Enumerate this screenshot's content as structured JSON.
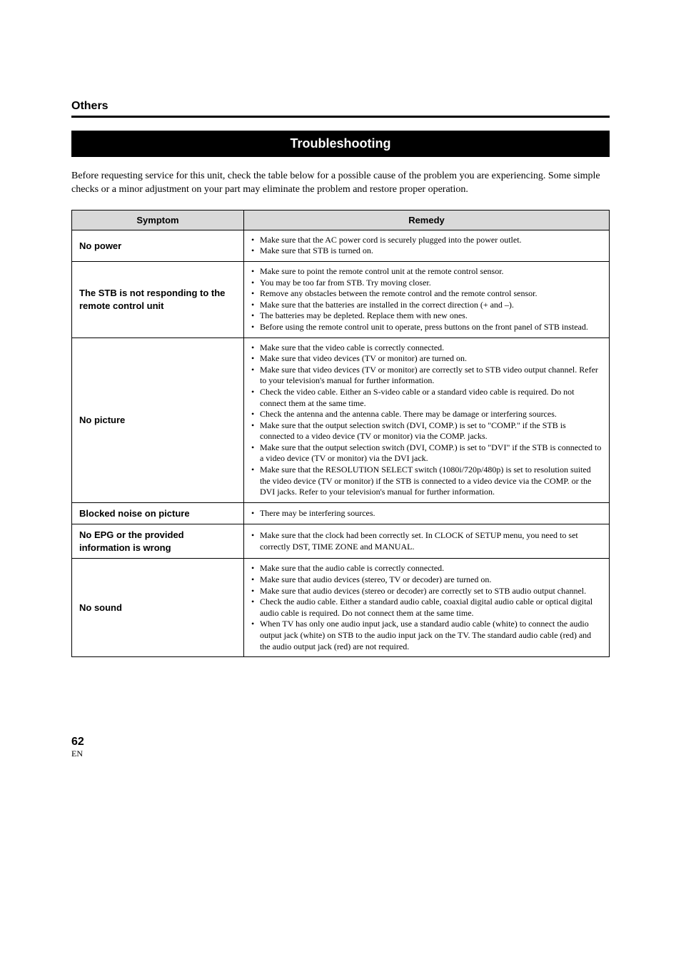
{
  "header": {
    "section_label": "Others",
    "title": "Troubleshooting",
    "intro": "Before requesting service for this unit, check the table below for a possible cause of the problem you are experiencing. Some simple checks or a minor adjustment on your part may eliminate the problem and restore proper operation."
  },
  "table": {
    "col_symptom": "Symptom",
    "col_remedy": "Remedy",
    "rows": [
      {
        "symptom": "No power",
        "remedies": [
          "Make sure that the AC power cord is securely plugged into the power outlet.",
          "Make sure that STB is turned on."
        ]
      },
      {
        "symptom": "The STB is not responding to the remote control unit",
        "remedies": [
          "Make sure to point the remote control unit at the remote control sensor.",
          "You may be too far from STB. Try moving closer.",
          "Remove any obstacles between the remote control and the remote control sensor.",
          "Make sure that the batteries are installed in the correct direction (+ and –).",
          "The batteries may be depleted. Replace them with new ones.",
          "Before using the remote control unit to operate, press buttons on the front panel of STB instead."
        ]
      },
      {
        "symptom": "No picture",
        "remedies": [
          "Make sure that the video cable is correctly connected.",
          "Make sure that video devices (TV or monitor) are turned on.",
          "Make sure that video devices (TV or monitor) are correctly set to STB video output channel. Refer to your television's manual for further information.",
          "Check the video cable. Either an S-video cable or a standard video cable is required. Do not connect them at the same time.",
          "Check the antenna and the antenna cable. There may be damage or interfering sources.",
          "Make sure that the output selection switch (DVI, COMP.) is set to \"COMP.\" if the STB is connected to a video device (TV or monitor) via the COMP. jacks.",
          "Make sure that the output selection switch (DVI, COMP.) is set to \"DVI\" if the STB is connected to a video device (TV or monitor) via the DVI jack.",
          "Make sure that the RESOLUTION SELECT switch (1080i/720p/480p) is set to resolution suited the video device (TV or monitor) if the STB is connected to a video device via the COMP. or the DVI jacks. Refer to your television's manual for further information."
        ]
      },
      {
        "symptom": "Blocked noise on picture",
        "remedies": [
          "There may be interfering sources."
        ]
      },
      {
        "symptom": "No EPG or the provided information is wrong",
        "remedies": [
          "Make sure that the clock had been correctly set. In CLOCK of SETUP menu, you need to set correctly DST, TIME ZONE and MANUAL."
        ]
      },
      {
        "symptom": "No sound",
        "remedies": [
          "Make sure that the audio cable is correctly connected.",
          "Make sure that audio devices (stereo, TV or decoder) are turned on.",
          "Make sure that audio devices (stereo or decoder) are correctly set to STB audio output channel.",
          "Check the audio cable. Either a standard audio cable, coaxial digital audio cable or optical digital audio cable is required. Do not connect them at the same time.",
          "When TV has only one audio input jack, use a standard audio cable (white) to connect the audio output jack (white) on STB to the audio input jack on the TV. The standard audio cable (red) and the audio output jack (red) are not required."
        ]
      }
    ]
  },
  "footer": {
    "page_number": "62",
    "lang": "EN"
  }
}
